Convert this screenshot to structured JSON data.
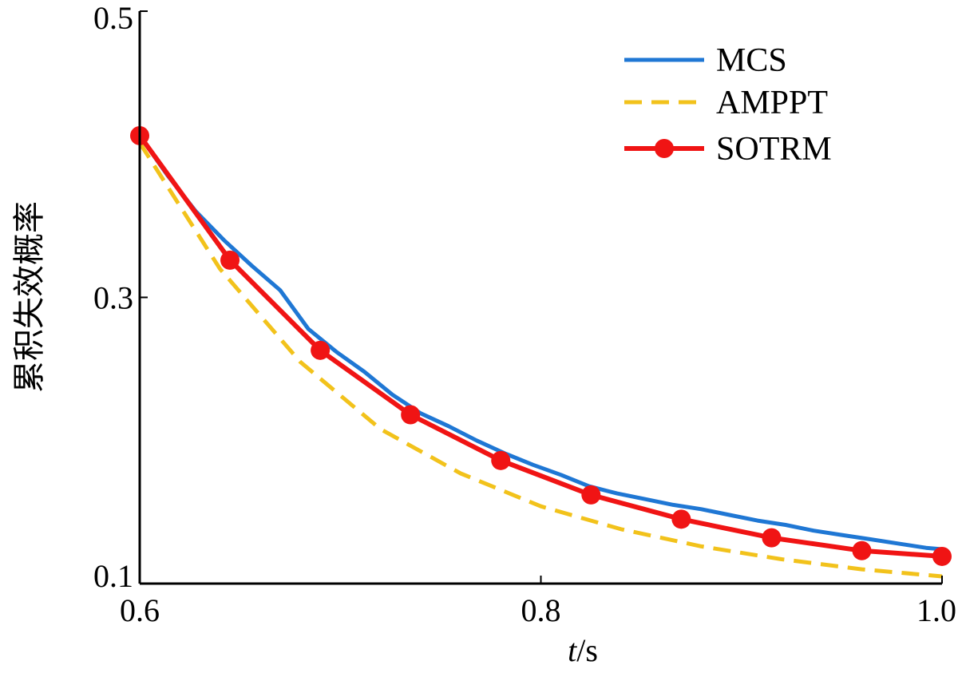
{
  "chart_data": {
    "type": "line",
    "title": "",
    "xlabel_italic": "t",
    "xlabel_unit": "/s",
    "ylabel": "累积失效概率",
    "xlim": [
      0.6,
      1.0
    ],
    "ylim": [
      0.1,
      0.5
    ],
    "xticks": [
      0.6,
      0.8,
      1.0
    ],
    "xtick_labels": [
      "0.6",
      "0.8",
      "1.0"
    ],
    "yticks": [
      0.1,
      0.3,
      0.5
    ],
    "ytick_labels": [
      "0.1",
      "0.3",
      "0.5"
    ],
    "grid": false,
    "legend_position": "top-right",
    "series": [
      {
        "name": "MCS",
        "style": "solid",
        "color": "#1f77d4",
        "x": [
          0.6,
          0.614,
          0.628,
          0.642,
          0.656,
          0.67,
          0.684,
          0.698,
          0.712,
          0.726,
          0.74,
          0.754,
          0.768,
          0.782,
          0.796,
          0.81,
          0.824,
          0.838,
          0.852,
          0.866,
          0.88,
          0.894,
          0.908,
          0.922,
          0.936,
          0.95,
          0.964,
          0.978,
          0.992,
          1.0
        ],
        "y": [
          0.413,
          0.385,
          0.36,
          0.34,
          0.322,
          0.305,
          0.278,
          0.262,
          0.248,
          0.232,
          0.219,
          0.21,
          0.2,
          0.191,
          0.183,
          0.176,
          0.168,
          0.163,
          0.159,
          0.155,
          0.152,
          0.148,
          0.144,
          0.141,
          0.137,
          0.134,
          0.131,
          0.128,
          0.125,
          0.124
        ]
      },
      {
        "name": "AMPPT",
        "style": "dashed",
        "color": "#f2c21b",
        "x": [
          0.6,
          0.64,
          0.68,
          0.72,
          0.76,
          0.8,
          0.84,
          0.88,
          0.92,
          0.96,
          1.0
        ],
        "y": [
          0.408,
          0.32,
          0.255,
          0.208,
          0.177,
          0.154,
          0.138,
          0.126,
          0.117,
          0.11,
          0.105
        ]
      },
      {
        "name": "SOTRM",
        "style": "solid-marker",
        "color": "#f01414",
        "x": [
          0.6,
          0.645,
          0.69,
          0.735,
          0.78,
          0.825,
          0.87,
          0.915,
          0.96,
          1.0
        ],
        "y": [
          0.413,
          0.326,
          0.263,
          0.218,
          0.186,
          0.162,
          0.145,
          0.132,
          0.123,
          0.119
        ]
      }
    ]
  }
}
